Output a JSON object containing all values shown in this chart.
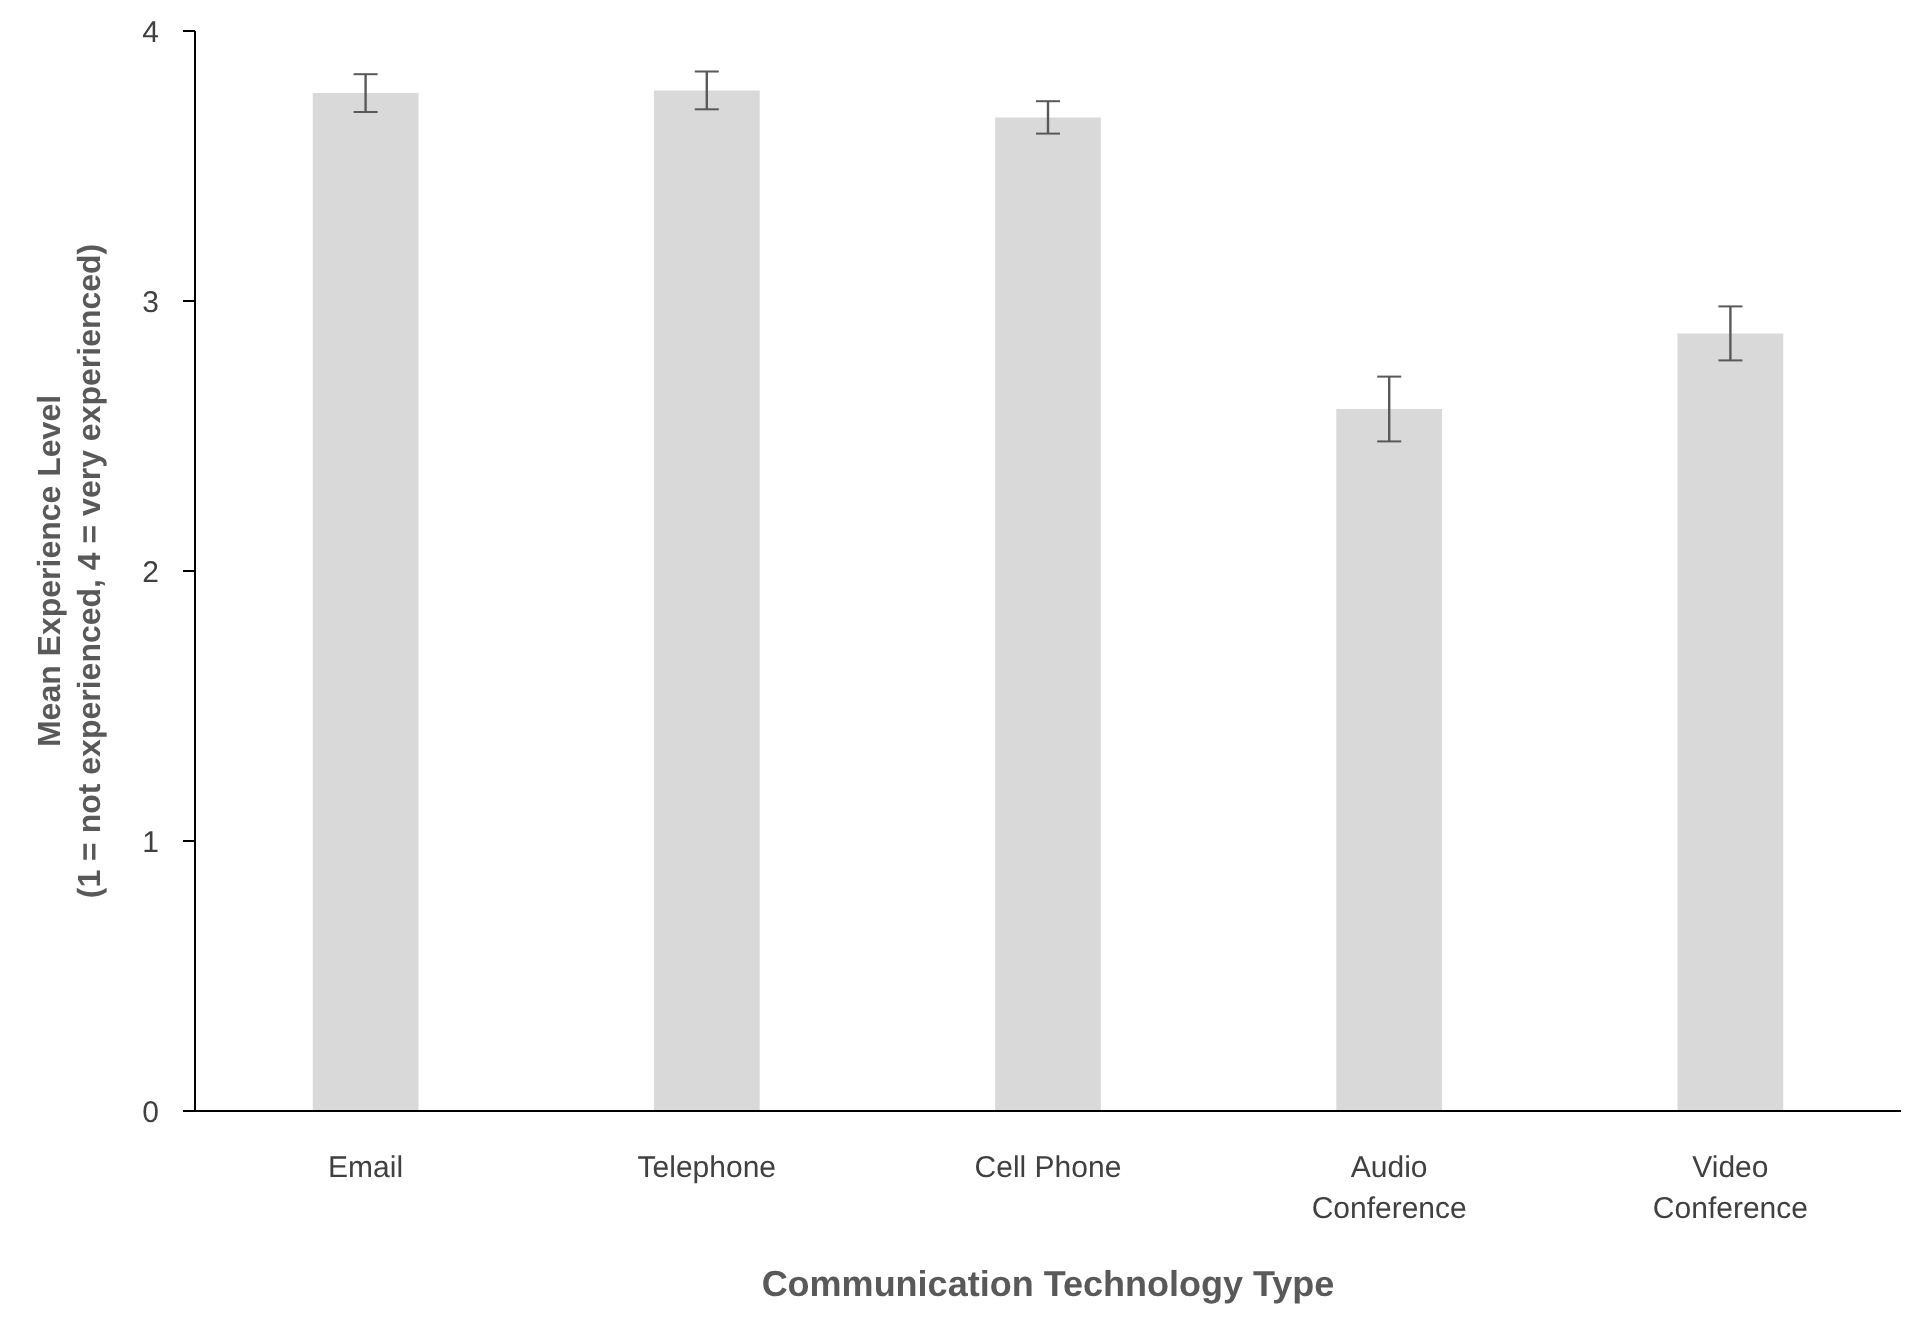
{
  "chart_data": {
    "type": "bar",
    "xlabel": "Communication Technology Type",
    "ylabel": "Mean Experience Level\n(1 = not experienced, 4 = very experienced)",
    "categories": [
      "Email",
      "Telephone",
      "Cell Phone",
      "Audio Conference",
      "Video Conference"
    ],
    "values": [
      3.77,
      3.78,
      3.68,
      2.6,
      2.88
    ],
    "errors": [
      0.07,
      0.07,
      0.06,
      0.12,
      0.1
    ],
    "color": "#d9d9d9",
    "ylim": [
      0,
      4
    ],
    "yticks": [
      0,
      1,
      2,
      3,
      4
    ],
    "grid": false
  }
}
